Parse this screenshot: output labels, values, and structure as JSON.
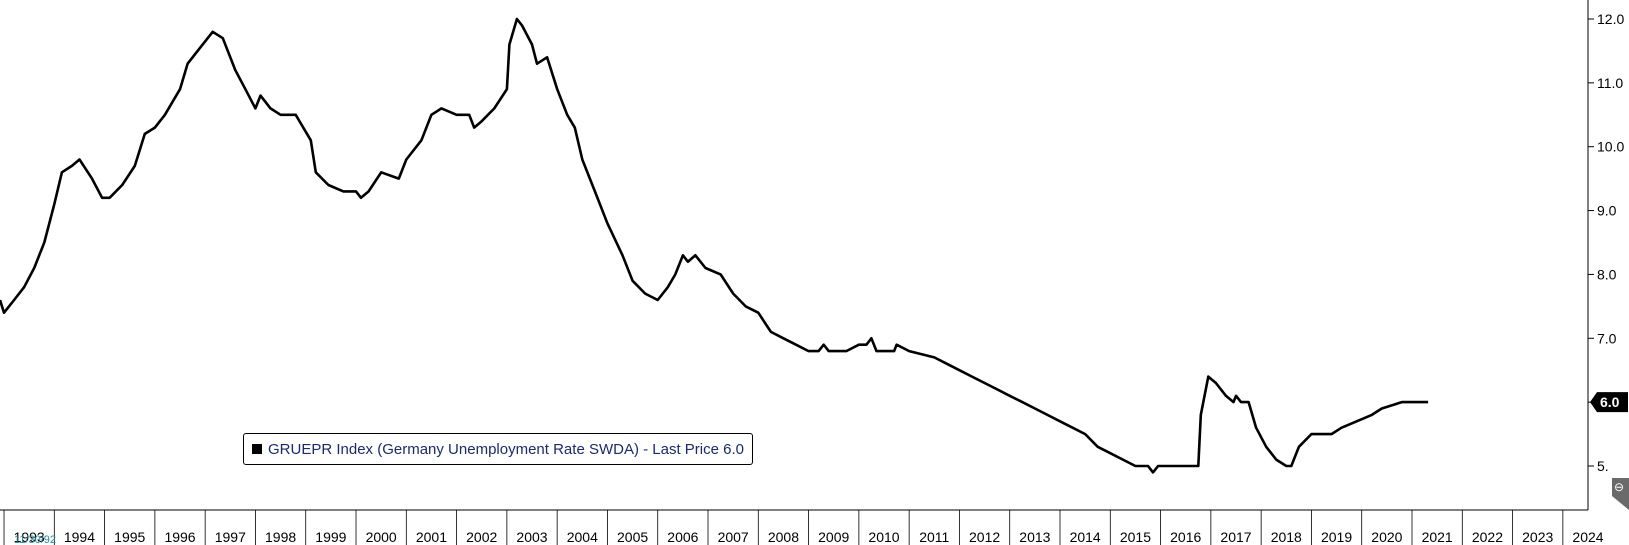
{
  "chart_data": {
    "type": "line",
    "x_unit": "year",
    "xlim": [
      1992.92,
      2024.5
    ],
    "ylim": [
      4.5,
      12.2
    ],
    "y_ticks": [
      5,
      6,
      7,
      8,
      9,
      10,
      11,
      12
    ],
    "y_tick_labels": [
      "5.",
      "6.0",
      "7.0",
      "8.0",
      "9.0",
      "10.0",
      "11.0",
      "12.0"
    ],
    "x_tick_labels": [
      "1993",
      "1994",
      "1995",
      "1996",
      "1997",
      "1998",
      "1999",
      "2000",
      "2001",
      "2002",
      "2003",
      "2004",
      "2005",
      "2006",
      "2007",
      "2008",
      "2009",
      "2010",
      "2011",
      "2012",
      "2013",
      "2014",
      "2015",
      "2016",
      "2017",
      "2018",
      "2019",
      "2020",
      "2021",
      "2022",
      "2023",
      "2024"
    ],
    "axis_start_label": "11/30/92",
    "grid": false,
    "legend_placement": "bottom-center",
    "series": [
      {
        "name": "GRUEPR Index (Germany Unemployment Rate SWDA) - Last Price 6.0",
        "color": "#000000",
        "last_value_label": "6.0",
        "points": [
          [
            1992.92,
            7.6
          ],
          [
            1993.0,
            7.4
          ],
          [
            1993.2,
            7.6
          ],
          [
            1993.4,
            7.8
          ],
          [
            1993.6,
            8.1
          ],
          [
            1993.8,
            8.5
          ],
          [
            1994.0,
            9.1
          ],
          [
            1994.15,
            9.6
          ],
          [
            1994.35,
            9.7
          ],
          [
            1994.5,
            9.8
          ],
          [
            1994.75,
            9.5
          ],
          [
            1994.95,
            9.2
          ],
          [
            1995.1,
            9.2
          ],
          [
            1995.35,
            9.4
          ],
          [
            1995.6,
            9.7
          ],
          [
            1995.8,
            10.2
          ],
          [
            1996.0,
            10.3
          ],
          [
            1996.2,
            10.5
          ],
          [
            1996.5,
            10.9
          ],
          [
            1996.65,
            11.3
          ],
          [
            1996.85,
            11.5
          ],
          [
            1997.15,
            11.8
          ],
          [
            1997.35,
            11.7
          ],
          [
            1997.6,
            11.2
          ],
          [
            1997.8,
            10.9
          ],
          [
            1998.0,
            10.6
          ],
          [
            1998.1,
            10.8
          ],
          [
            1998.3,
            10.6
          ],
          [
            1998.5,
            10.5
          ],
          [
            1998.8,
            10.5
          ],
          [
            1999.1,
            10.1
          ],
          [
            1999.2,
            9.6
          ],
          [
            1999.45,
            9.4
          ],
          [
            1999.75,
            9.3
          ],
          [
            2000.0,
            9.3
          ],
          [
            2000.1,
            9.2
          ],
          [
            2000.25,
            9.3
          ],
          [
            2000.5,
            9.6
          ],
          [
            2000.85,
            9.5
          ],
          [
            2001.0,
            9.8
          ],
          [
            2001.3,
            10.1
          ],
          [
            2001.5,
            10.5
          ],
          [
            2001.7,
            10.6
          ],
          [
            2002.0,
            10.5
          ],
          [
            2002.25,
            10.5
          ],
          [
            2002.35,
            10.3
          ],
          [
            2002.5,
            10.4
          ],
          [
            2002.75,
            10.6
          ],
          [
            2003.0,
            10.9
          ],
          [
            2003.05,
            11.6
          ],
          [
            2003.2,
            12.0
          ],
          [
            2003.3,
            11.9
          ],
          [
            2003.5,
            11.6
          ],
          [
            2003.6,
            11.3
          ],
          [
            2003.8,
            11.4
          ],
          [
            2004.0,
            10.9
          ],
          [
            2004.2,
            10.5
          ],
          [
            2004.35,
            10.3
          ],
          [
            2004.5,
            9.8
          ],
          [
            2004.75,
            9.3
          ],
          [
            2005.0,
            8.8
          ],
          [
            2005.3,
            8.3
          ],
          [
            2005.5,
            7.9
          ],
          [
            2005.75,
            7.7
          ],
          [
            2006.0,
            7.6
          ],
          [
            2006.2,
            7.8
          ],
          [
            2006.35,
            8.0
          ],
          [
            2006.5,
            8.3
          ],
          [
            2006.6,
            8.2
          ],
          [
            2006.75,
            8.3
          ],
          [
            2006.95,
            8.1
          ],
          [
            2007.25,
            8.0
          ],
          [
            2007.5,
            7.7
          ],
          [
            2007.75,
            7.5
          ],
          [
            2008.0,
            7.4
          ],
          [
            2008.25,
            7.1
          ],
          [
            2008.5,
            7.0
          ],
          [
            2008.75,
            6.9
          ],
          [
            2009.0,
            6.8
          ],
          [
            2009.2,
            6.8
          ],
          [
            2009.3,
            6.9
          ],
          [
            2009.4,
            6.8
          ],
          [
            2009.75,
            6.8
          ],
          [
            2010.0,
            6.9
          ],
          [
            2010.15,
            6.9
          ],
          [
            2010.25,
            7.0
          ],
          [
            2010.35,
            6.8
          ],
          [
            2010.7,
            6.8
          ],
          [
            2010.75,
            6.9
          ],
          [
            2011.0,
            6.8
          ],
          [
            2011.5,
            6.7
          ],
          [
            2011.75,
            6.6
          ],
          [
            2012.0,
            6.5
          ],
          [
            2012.25,
            6.4
          ],
          [
            2012.5,
            6.3
          ],
          [
            2012.75,
            6.2
          ],
          [
            2013.0,
            6.1
          ],
          [
            2013.25,
            6.0
          ],
          [
            2013.5,
            5.9
          ],
          [
            2013.75,
            5.8
          ],
          [
            2014.0,
            5.7
          ],
          [
            2014.25,
            5.6
          ],
          [
            2014.5,
            5.5
          ],
          [
            2014.75,
            5.3
          ],
          [
            2015.0,
            5.2
          ],
          [
            2015.25,
            5.1
          ],
          [
            2015.5,
            5.0
          ],
          [
            2015.75,
            5.0
          ],
          [
            2015.85,
            4.9
          ],
          [
            2015.95,
            5.0
          ],
          [
            2016.5,
            5.0
          ],
          [
            2016.75,
            5.0
          ],
          [
            2016.8,
            5.8
          ],
          [
            2016.95,
            6.4
          ],
          [
            2017.1,
            6.3
          ],
          [
            2017.3,
            6.1
          ],
          [
            2017.45,
            6.0
          ],
          [
            2017.5,
            6.1
          ],
          [
            2017.6,
            6.0
          ],
          [
            2017.75,
            6.0
          ],
          [
            2017.9,
            5.6
          ],
          [
            2018.1,
            5.3
          ],
          [
            2018.3,
            5.1
          ],
          [
            2018.5,
            5.0
          ],
          [
            2018.6,
            5.0
          ],
          [
            2018.75,
            5.3
          ],
          [
            2019.0,
            5.5
          ],
          [
            2019.4,
            5.5
          ],
          [
            2019.6,
            5.6
          ],
          [
            2019.9,
            5.7
          ],
          [
            2020.2,
            5.8
          ],
          [
            2020.4,
            5.9
          ],
          [
            2020.8,
            6.0
          ],
          [
            2020.95,
            6.0
          ],
          [
            2021.0,
            6.0
          ],
          [
            2021.25,
            6.0
          ],
          [
            2021.32,
            6.0
          ]
        ]
      }
    ]
  }
}
